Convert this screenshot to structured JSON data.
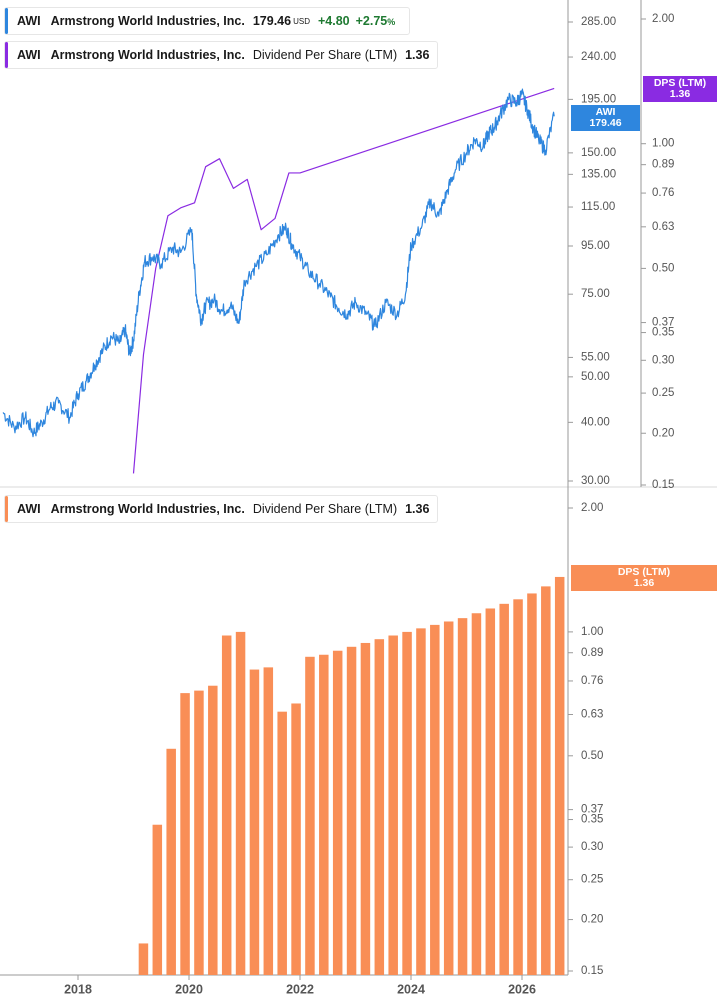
{
  "legends": {
    "price": {
      "ticker": "AWI",
      "name": "Armstrong World Industries, Inc.",
      "value": "179.46",
      "currency": "USD",
      "change": "+4.80",
      "change_pct": "+2.75",
      "pct_sign": "%",
      "color": "#2e86de"
    },
    "dps_top": {
      "ticker": "AWI",
      "name": "Armstrong World Industries, Inc.",
      "metric": "Dividend Per Share (LTM)",
      "value": "1.36",
      "color": "#8a2be2"
    },
    "dps_bottom": {
      "ticker": "AWI",
      "name": "Armstrong World Industries, Inc.",
      "metric": "Dividend Per Share (LTM)",
      "value": "1.36",
      "color": "#f98e56"
    }
  },
  "tags": {
    "price": {
      "line1": "AWI",
      "line2": "179.46",
      "color": "#2e86de"
    },
    "dps_top": {
      "line1": "DPS (LTM)",
      "line2": "1.36",
      "color": "#8a2be2"
    },
    "dps_bottom": {
      "line1": "DPS (LTM)",
      "line2": "1.36",
      "color": "#f98e56"
    }
  },
  "chart_data": [
    {
      "type": "line",
      "scale": "log",
      "series": [
        {
          "name": "AWI",
          "axis": "left",
          "x": [
            2016.65,
            2016.85,
            2017.05,
            2017.2,
            2017.35,
            2017.5,
            2017.65,
            2017.85,
            2018.0,
            2018.15,
            2018.3,
            2018.45,
            2018.6,
            2018.75,
            2018.85,
            2018.93,
            2019.0,
            2019.1,
            2019.2,
            2019.35,
            2019.5,
            2019.7,
            2019.85,
            2020.05,
            2020.13,
            2020.22,
            2020.3,
            2020.45,
            2020.6,
            2020.75,
            2020.9,
            2021.0,
            2021.2,
            2021.4,
            2021.6,
            2021.75,
            2021.85,
            2022.0,
            2022.15,
            2022.35,
            2022.55,
            2022.7,
            2022.85,
            2023.0,
            2023.2,
            2023.35,
            2023.55,
            2023.75,
            2023.9,
            2024.0,
            2024.2,
            2024.35,
            2024.5,
            2024.65,
            2024.8,
            2025.0,
            2025.15,
            2025.3,
            2025.4,
            2025.5,
            2025.6,
            2025.75,
            2025.9,
            2026.0,
            2026.1,
            2026.2,
            2026.3,
            2026.42,
            2026.58
          ],
          "values": [
            42,
            39,
            41,
            38,
            40,
            43,
            44,
            41,
            46,
            49,
            53,
            57,
            61,
            59,
            63,
            56,
            60,
            75,
            88,
            90,
            87,
            94,
            92,
            103,
            75,
            66,
            71,
            73,
            69,
            71,
            65,
            80,
            86,
            91,
            100,
            104,
            96,
            90,
            84,
            79,
            74,
            70,
            68,
            72,
            68,
            64,
            72,
            68,
            75,
            95,
            105,
            118,
            110,
            124,
            138,
            150,
            160,
            155,
            165,
            170,
            180,
            195,
            192,
            200,
            185,
            170,
            160,
            152,
            179.46
          ],
          "color": "#2e86de"
        },
        {
          "name": "DPS (LTM)",
          "axis": "right",
          "x": [
            2019.0,
            2019.18,
            2019.4,
            2019.62,
            2019.85,
            2020.1,
            2020.3,
            2020.55,
            2020.8,
            2021.05,
            2021.3,
            2021.55,
            2021.8,
            2022.0,
            2026.58
          ],
          "values": [
            0.16,
            0.31,
            0.5,
            0.67,
            0.7,
            0.72,
            0.88,
            0.92,
            0.78,
            0.82,
            0.62,
            0.66,
            0.85,
            0.85,
            1.36
          ],
          "color": "#8a2be2"
        }
      ],
      "y_left_ticks": [
        285.0,
        240.0,
        195.0,
        150.0,
        135.0,
        115.0,
        95.0,
        75.0,
        55.0,
        50.0,
        40.0,
        30.0
      ],
      "y_left_tick_labels": [
        "285.00",
        "240.00",
        "195.00",
        "150.00",
        "135.00",
        "115.00",
        "95.00",
        "75.00",
        "55.00",
        "50.00",
        "40.00",
        "30.00"
      ],
      "y_right_ticks": [
        2.0,
        1.0,
        0.89,
        0.76,
        0.63,
        0.5,
        0.37,
        0.35,
        0.3,
        0.25,
        0.2,
        0.15
      ],
      "y_right_tick_labels": [
        "2.00",
        "1.00",
        "0.89",
        "0.76",
        "0.63",
        "0.50",
        "0.37",
        "0.35",
        "0.30",
        "0.25",
        "0.20",
        "0.15"
      ]
    },
    {
      "type": "bar",
      "scale": "log",
      "series": [
        {
          "name": "DPS (LTM)",
          "color": "#f98e56",
          "x": [
            2019.0,
            2019.25,
            2019.5,
            2019.75,
            2020.0,
            2020.25,
            2020.5,
            2020.75,
            2021.0,
            2021.25,
            2021.5,
            2021.75,
            2022.0,
            2022.25,
            2022.5,
            2022.75,
            2023.0,
            2023.25,
            2023.5,
            2023.75,
            2024.0,
            2024.25,
            2024.5,
            2024.75,
            2025.0,
            2025.25,
            2025.5,
            2025.75,
            2026.0,
            2026.25,
            2026.5
          ],
          "values": [
            0.175,
            0.34,
            0.52,
            0.71,
            0.72,
            0.74,
            0.98,
            1.0,
            0.81,
            0.82,
            0.64,
            0.67,
            0.87,
            0.88,
            0.9,
            0.92,
            0.94,
            0.96,
            0.98,
            1.0,
            1.02,
            1.04,
            1.06,
            1.08,
            1.11,
            1.14,
            1.17,
            1.2,
            1.24,
            1.29,
            1.36
          ]
        }
      ],
      "y_ticks": [
        2.0,
        1.0,
        0.89,
        0.76,
        0.63,
        0.5,
        0.37,
        0.35,
        0.3,
        0.25,
        0.2,
        0.15
      ],
      "y_tick_labels": [
        "2.00",
        "1.00",
        "0.89",
        "0.76",
        "0.63",
        "0.50",
        "0.37",
        "0.35",
        "0.30",
        "0.25",
        "0.20",
        "0.15"
      ],
      "x_ticks": [
        2018,
        2020,
        2022,
        2024,
        2026
      ],
      "x_tick_labels": [
        "2018",
        "2020",
        "2022",
        "2024",
        "2026"
      ]
    }
  ]
}
